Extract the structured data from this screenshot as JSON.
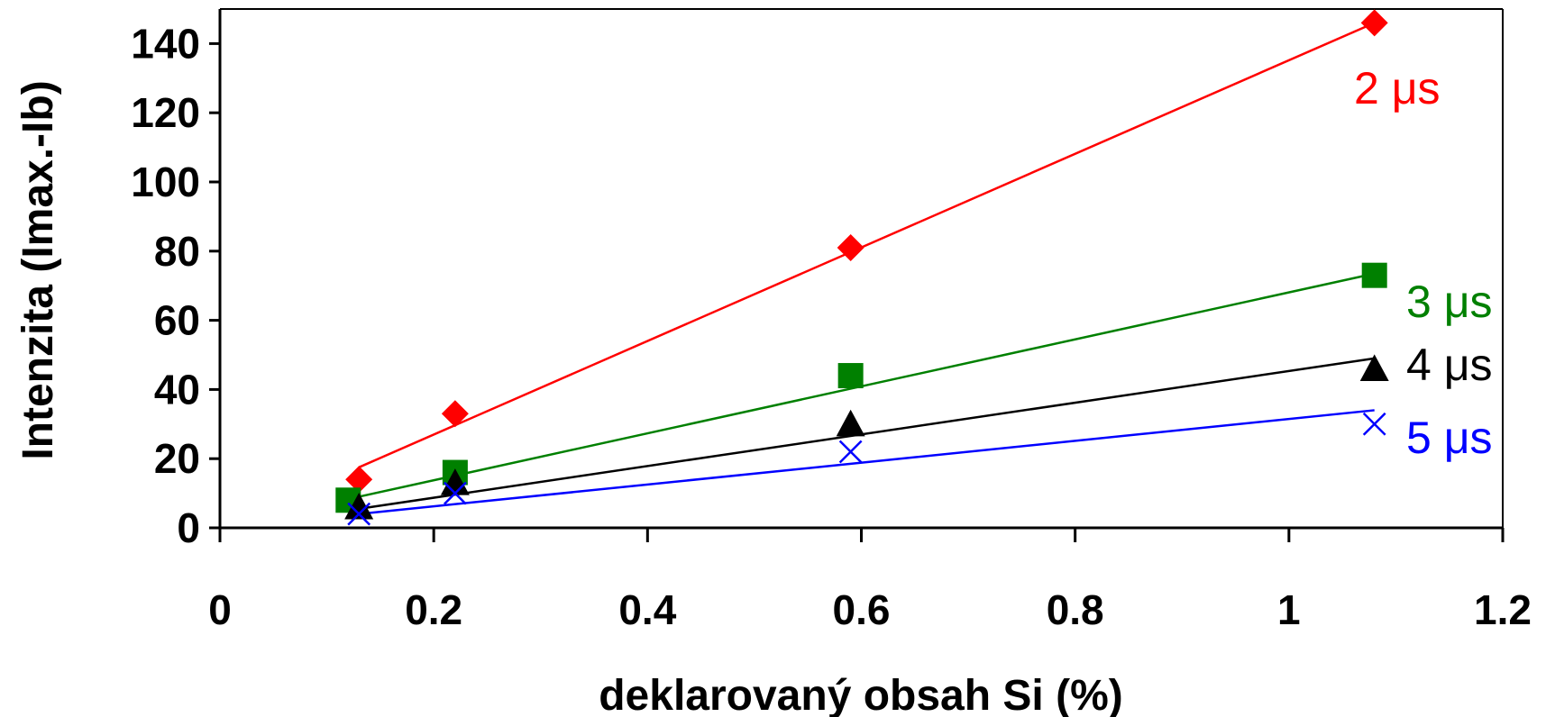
{
  "chart_data": {
    "type": "scatter",
    "title": "",
    "xlabel": "deklarovaný obsah Si (%)",
    "ylabel": "Intenzita (Imax.-Ib)",
    "xlim": [
      0,
      1.2
    ],
    "ylim": [
      0,
      150
    ],
    "xticks": [
      "0",
      "0.2",
      "0.4",
      "0.6",
      "0.8",
      "1",
      "1.2"
    ],
    "yticks": [
      "0",
      "20",
      "40",
      "60",
      "80",
      "100",
      "120",
      "140"
    ],
    "grid": false,
    "legend": "none",
    "series": [
      {
        "name": "2 μs",
        "color": "#ff0000",
        "marker": "diamond",
        "x": [
          0.13,
          0.22,
          0.59,
          1.08
        ],
        "y": [
          14,
          33,
          81,
          146
        ],
        "fit": [
          [
            0.13,
            17.5
          ],
          [
            1.08,
            146
          ]
        ]
      },
      {
        "name": "3 μs",
        "color": "#008000",
        "marker": "square",
        "x": [
          0.12,
          0.22,
          0.59,
          1.08
        ],
        "y": [
          8,
          16,
          44,
          73
        ],
        "fit": [
          [
            0.13,
            9
          ],
          [
            1.08,
            73.5
          ]
        ]
      },
      {
        "name": "4 μs",
        "color": "#000000",
        "marker": "triangle",
        "x": [
          0.13,
          0.22,
          0.59,
          1.08
        ],
        "y": [
          6,
          13,
          30,
          46
        ],
        "fit": [
          [
            0.13,
            5.5
          ],
          [
            1.08,
            49
          ]
        ]
      },
      {
        "name": "5 μs",
        "color": "#0000ff",
        "marker": "x",
        "x": [
          0.13,
          0.22,
          0.59,
          1.08
        ],
        "y": [
          4,
          10,
          22,
          30
        ],
        "fit": [
          [
            0.13,
            4
          ],
          [
            1.08,
            34
          ]
        ]
      }
    ]
  }
}
